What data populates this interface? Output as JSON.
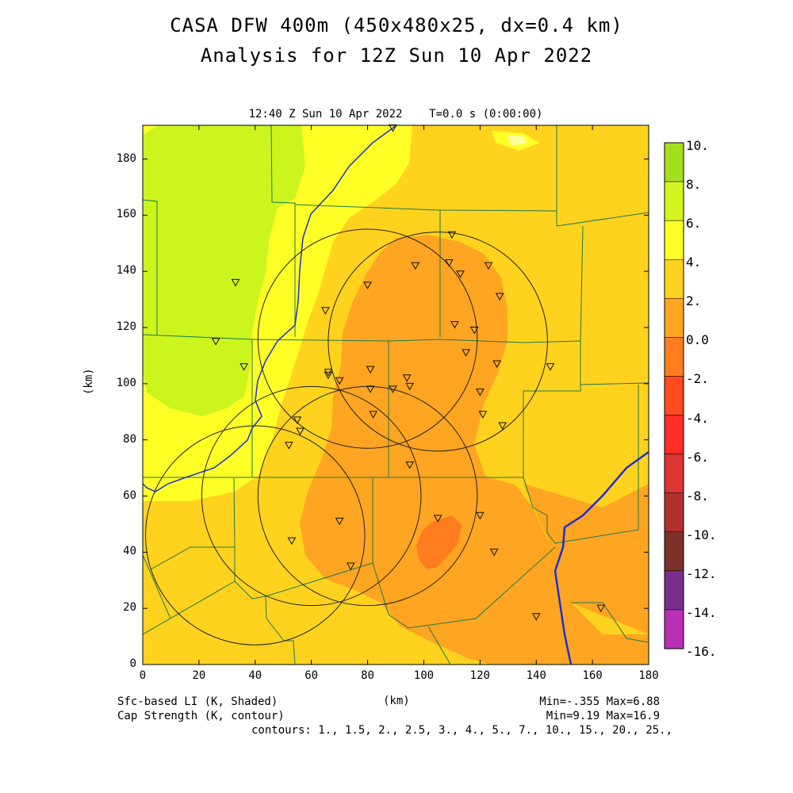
{
  "title_line1": "CASA DFW 400m (450x480x25, dx=0.4 km)",
  "title_line2": "Analysis for 12Z Sun 10 Apr 2022",
  "time_label": "12:40 Z Sun 10 Apr 2022    T=0.0 s (0:00:00)",
  "x_axis_label": "(km)",
  "y_axis_label": "(km)",
  "x_ticks": [
    "0",
    "20",
    "40",
    "60",
    "80",
    "100",
    "120",
    "140",
    "160",
    "180"
  ],
  "y_ticks": [
    "0",
    "20",
    "40",
    "60",
    "80",
    "100",
    "120",
    "140",
    "160",
    "180"
  ],
  "footer_left1": "Sfc-based LI (K, Shaded)",
  "footer_left2": "Cap Strength (K, contour)",
  "footer_right1": "Min=-.355 Max=6.88",
  "footer_right2": "Min=9.19 Max=16.9",
  "footer_contours": "contours: 1., 1.5, 2., 2.5, 3., 4., 5., 7., 10., 15., 20., 25.,",
  "colorbar": {
    "labels": [
      "10.",
      "8.",
      "6.",
      "4.",
      "2.",
      "0.0",
      "-2.",
      "-4.",
      "-6.",
      "-8.",
      "-10.",
      "-12.",
      "-14.",
      "-16."
    ],
    "colors": [
      "#a6e01c",
      "#d4f520",
      "#ffff26",
      "#ffd21e",
      "#ffa521",
      "#ff7d1e",
      "#ff4b1e",
      "#ff2d26",
      "#de3333",
      "#b2302b",
      "#7e302a",
      "#7a2e8c",
      "#b82fb4",
      "#d940d9"
    ]
  },
  "fill_colors": {
    "green": "#ccf51e",
    "yellow": "#ffff26",
    "yellow_orange": "#ffd21e",
    "orange": "#ffa521",
    "dark_orange": "#ff7d1e"
  },
  "map": {
    "x_range_km": [
      0,
      180
    ],
    "y_range_km": [
      0,
      192
    ],
    "radar_sites_km": [
      [
        80,
        116
      ],
      [
        105,
        115
      ],
      [
        60,
        60
      ],
      [
        40,
        46
      ],
      [
        80,
        60
      ]
    ],
    "radar_range_km": 39,
    "station_markers_km": [
      [
        89,
        191
      ],
      [
        110,
        153
      ],
      [
        97,
        142
      ],
      [
        109,
        143
      ],
      [
        113,
        139
      ],
      [
        123,
        142
      ],
      [
        80,
        135
      ],
      [
        127,
        131
      ],
      [
        65,
        126
      ],
      [
        111,
        121
      ],
      [
        118,
        119
      ],
      [
        33,
        136
      ],
      [
        26,
        115
      ],
      [
        36,
        106
      ],
      [
        66,
        104
      ],
      [
        66,
        103
      ],
      [
        70,
        101
      ],
      [
        81,
        105
      ],
      [
        94,
        102
      ],
      [
        95,
        99
      ],
      [
        89,
        98
      ],
      [
        81,
        98
      ],
      [
        120,
        97
      ],
      [
        126,
        107
      ],
      [
        115,
        111
      ],
      [
        145,
        106
      ],
      [
        82,
        89
      ],
      [
        121,
        89
      ],
      [
        128,
        85
      ],
      [
        55,
        87
      ],
      [
        56,
        83
      ],
      [
        52,
        78
      ],
      [
        95,
        71
      ],
      [
        70,
        51
      ],
      [
        105,
        52
      ],
      [
        120,
        53
      ],
      [
        53,
        44
      ],
      [
        74,
        35
      ],
      [
        125,
        40
      ],
      [
        140,
        17
      ],
      [
        163,
        20
      ]
    ]
  }
}
